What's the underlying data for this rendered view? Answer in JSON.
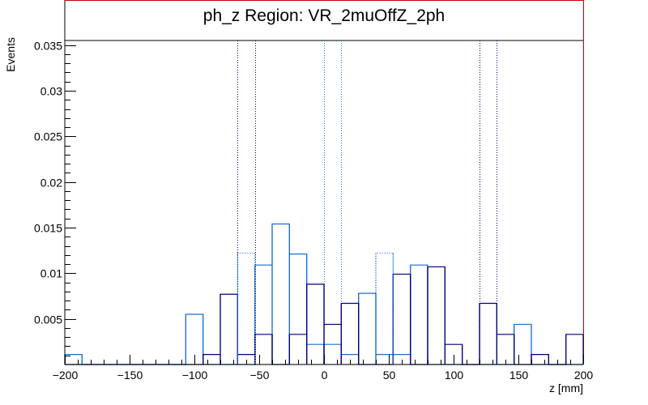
{
  "chart_data": {
    "type": "histogram",
    "title": "ph_z Region: VR_2muOffZ_2ph",
    "xlabel": "z [mm]",
    "ylabel": "Events",
    "xlim": [
      -200,
      200
    ],
    "ylim": [
      0,
      0.0355
    ],
    "bin_width": 13.3333,
    "x_ticks": [
      -200,
      -150,
      -100,
      -50,
      0,
      50,
      100,
      150,
      200
    ],
    "x_tick_labels": [
      "−200",
      "−150",
      "−100",
      "−50",
      "0",
      "50",
      "100",
      "150",
      "200"
    ],
    "y_ticks": [
      0.005,
      0.01,
      0.015,
      0.02,
      0.025,
      0.03,
      0.035
    ],
    "y_tick_labels": [
      "0.005",
      "0.01",
      "0.015",
      "0.02",
      "0.025",
      "0.03",
      "0.035"
    ],
    "series": [
      {
        "color": "#1a6fd6",
        "style": "solid",
        "values": [
          0.0011,
          0,
          0,
          0,
          0,
          0,
          0,
          0.0055,
          0,
          0,
          0,
          0.0109,
          0.0154,
          0.0121,
          0.0022,
          0.0022,
          0.0011,
          0.0078,
          0.0011,
          0.0011,
          0.0109,
          0,
          0,
          0,
          0,
          0,
          0.0044,
          0,
          0,
          0
        ]
      },
      {
        "color": "#00007a",
        "style": "solid",
        "values": [
          0,
          0,
          0,
          0,
          0,
          0,
          0,
          0,
          0.0011,
          0.0077,
          0.0011,
          0.0033,
          0,
          0.0033,
          0.0088,
          0.0044,
          0.0067,
          0,
          0,
          0.0099,
          0,
          0.0107,
          0.0022,
          0,
          0.0067,
          0.0033,
          0,
          0.0011,
          0,
          0.0033
        ]
      },
      {
        "color": "#1a6fd6",
        "style": "dotted",
        "values": [
          0,
          0,
          0,
          0,
          0,
          0,
          0,
          0,
          0,
          0,
          0.0122,
          0,
          0,
          0,
          0,
          0,
          0,
          0,
          0.0122,
          0,
          0,
          0,
          0,
          0,
          0,
          0,
          0,
          0,
          0,
          0
        ]
      }
    ],
    "vertical_lines": [
      {
        "x": -66.6667,
        "color": "#00007a"
      },
      {
        "x": -53.3333,
        "color": "#00007a"
      },
      {
        "x": 0,
        "color": "#1a6fd6"
      },
      {
        "x": 13.3333,
        "color": "#1a6fd6"
      },
      {
        "x": 120,
        "color": "#00007a"
      },
      {
        "x": 133.3333,
        "color": "#00007a"
      }
    ],
    "grid": false
  }
}
